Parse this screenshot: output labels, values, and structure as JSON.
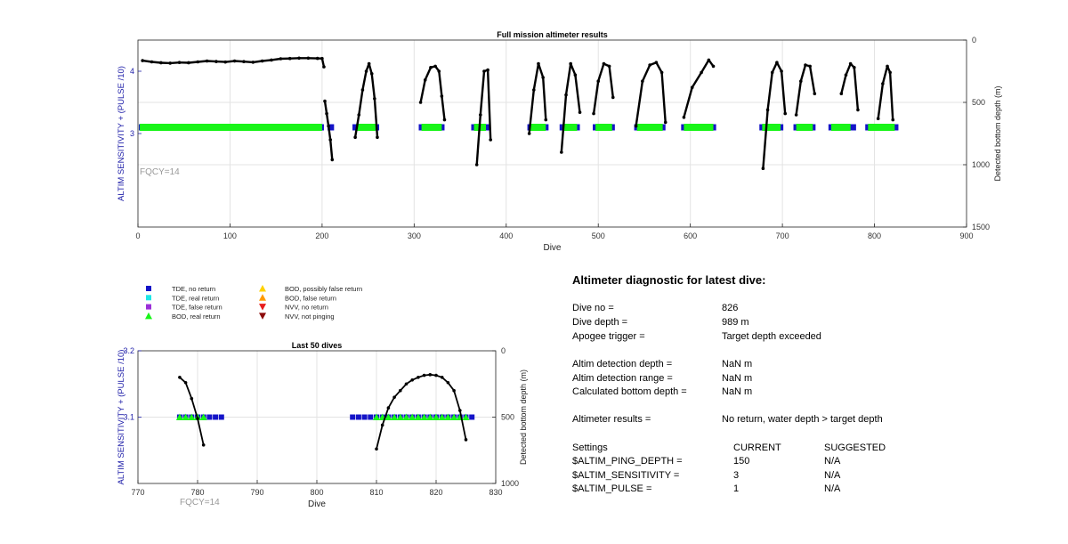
{
  "colors": {
    "tde_no": "#1414c8",
    "tde_real": "#1ee6e6",
    "tde_false": "#9b2fd8",
    "bod_real": "#19f519",
    "bod_possibly_false": "#ffd200",
    "bod_false": "#ff9a00",
    "nvv_no": "#e81c1c",
    "nvv_not": "#8c0a0a",
    "left_axis": "#2222aa",
    "fqcy": "#999999",
    "grid": "#e3e3e3"
  },
  "legend": {
    "items": [
      {
        "label": "TDE, no return",
        "marker": "square",
        "color": "#1414c8"
      },
      {
        "label": "TDE, real return",
        "marker": "square",
        "color": "#1ee6e6"
      },
      {
        "label": "TDE, false return",
        "marker": "square",
        "color": "#9b2fd8"
      },
      {
        "label": "BOD, real return",
        "marker": "triangle-up",
        "color": "#19f519"
      },
      {
        "label": "BOD, possibly false return",
        "marker": "triangle-up",
        "color": "#ffd200"
      },
      {
        "label": "BOD, false return",
        "marker": "triangle-up",
        "color": "#ff9a00"
      },
      {
        "label": "NVV, no return",
        "marker": "triangle-down",
        "color": "#e81c1c"
      },
      {
        "label": "NVV, not pinging",
        "marker": "triangle-down",
        "color": "#8c0a0a"
      }
    ]
  },
  "chart_data": [
    {
      "type": "scatter",
      "title": "Full mission altimeter results",
      "xlabel": "Dive",
      "ylabel_left": "ALTIM SENSITIVITY + (PULSE /10)",
      "ylabel_right": "Detected bottom depth (m)",
      "xlim": [
        0,
        900
      ],
      "xticks": [
        "0",
        "100",
        "200",
        "300",
        "400",
        "500",
        "600",
        "700",
        "800",
        "900"
      ],
      "ylim_left": [
        1.5,
        4.5
      ],
      "yticks_left": [
        "3",
        "4"
      ],
      "ylim_right": [
        1500,
        0
      ],
      "yticks_right": [
        "0",
        "500",
        "1000",
        "1500"
      ],
      "grid": true,
      "annotation": "FQCY=14",
      "sensitivity_level": 3.1,
      "tde_no_return_dive_ranges": [
        [
          1,
          202
        ],
        [
          206,
          213
        ],
        [
          233,
          262
        ],
        [
          305,
          333
        ],
        [
          362,
          382
        ],
        [
          423,
          446
        ],
        [
          458,
          480
        ],
        [
          494,
          518
        ],
        [
          539,
          573
        ],
        [
          590,
          628
        ],
        [
          675,
          701
        ],
        [
          712,
          736
        ],
        [
          750,
          780
        ],
        [
          790,
          826
        ]
      ],
      "bod_real_return_dive_ranges": [
        [
          2,
          200
        ],
        [
          237,
          258
        ],
        [
          308,
          330
        ],
        [
          365,
          378
        ],
        [
          426,
          443
        ],
        [
          461,
          477
        ],
        [
          497,
          515
        ],
        [
          542,
          570
        ],
        [
          593,
          625
        ],
        [
          678,
          698
        ],
        [
          715,
          733
        ],
        [
          753,
          774
        ],
        [
          793,
          822
        ]
      ],
      "bottom_depth_segments": [
        {
          "x": [
            5,
            15,
            25,
            35,
            45,
            55,
            65,
            75,
            85,
            95,
            105,
            115,
            125,
            135,
            145,
            155,
            165,
            175,
            185,
            195,
            200,
            202
          ],
          "y": [
            165,
            175,
            182,
            185,
            180,
            182,
            175,
            168,
            172,
            176,
            168,
            173,
            178,
            168,
            160,
            150,
            148,
            145,
            145,
            147,
            148,
            215
          ]
        },
        {
          "x": [
            203,
            205,
            207,
            209,
            211
          ],
          "y": [
            490,
            590,
            690,
            800,
            960
          ]
        },
        {
          "x": [
            236,
            240,
            244,
            248,
            251,
            254,
            257,
            260
          ],
          "y": [
            780,
            600,
            400,
            250,
            190,
            270,
            470,
            780
          ]
        },
        {
          "x": [
            307,
            312,
            318,
            323,
            327,
            330,
            333
          ],
          "y": [
            500,
            320,
            220,
            210,
            250,
            450,
            640
          ]
        },
        {
          "x": [
            368,
            372,
            376,
            380,
            383
          ],
          "y": [
            1000,
            600,
            250,
            240,
            800
          ]
        },
        {
          "x": [
            425,
            430,
            435,
            440,
            443
          ],
          "y": [
            750,
            400,
            190,
            300,
            640
          ]
        },
        {
          "x": [
            460,
            465,
            470,
            475,
            480
          ],
          "y": [
            900,
            440,
            190,
            280,
            580
          ]
        },
        {
          "x": [
            495,
            500,
            506,
            512,
            516
          ],
          "y": [
            590,
            330,
            190,
            210,
            460
          ]
        },
        {
          "x": [
            541,
            548,
            556,
            563,
            569,
            573
          ],
          "y": [
            690,
            330,
            200,
            180,
            260,
            660
          ]
        },
        {
          "x": [
            593,
            602,
            612,
            620,
            625
          ],
          "y": [
            620,
            380,
            260,
            160,
            210
          ]
        },
        {
          "x": [
            679,
            684,
            689,
            694,
            699,
            703
          ],
          "y": [
            1030,
            560,
            260,
            180,
            250,
            590
          ]
        },
        {
          "x": [
            715,
            720,
            725,
            730,
            735
          ],
          "y": [
            600,
            330,
            200,
            210,
            430
          ]
        },
        {
          "x": [
            764,
            769,
            774,
            778,
            782
          ],
          "y": [
            430,
            280,
            190,
            220,
            560
          ]
        },
        {
          "x": [
            804,
            809,
            814,
            817,
            820
          ],
          "y": [
            630,
            350,
            210,
            260,
            640
          ]
        }
      ]
    },
    {
      "type": "scatter",
      "title": "Last 50 dives",
      "xlabel": "Dive",
      "ylabel_left": "ALTIM SENSITIVITY + (PULSE /10)",
      "ylabel_right": "Detected bottom depth (m)",
      "xlim": [
        770,
        830
      ],
      "xticks": [
        "770",
        "780",
        "790",
        "800",
        "810",
        "820",
        "830"
      ],
      "ylim_left": [
        3.0,
        3.2
      ],
      "yticks_left": [
        "3.1",
        "3.2"
      ],
      "ylim_right": [
        1000,
        0
      ],
      "yticks_right": [
        "0",
        "500",
        "1000"
      ],
      "grid": true,
      "annotation": "FQCY=14",
      "tde_no_return_dives": [
        777,
        778,
        779,
        780,
        781,
        782,
        783,
        784,
        806,
        807,
        808,
        809,
        810,
        811,
        812,
        813,
        814,
        815,
        816,
        817,
        818,
        819,
        820,
        821,
        822,
        823,
        824,
        825,
        826
      ],
      "tde_no_return_level": 3.1,
      "bod_real_return_dives": [
        777,
        778,
        779,
        780,
        781,
        810,
        811,
        812,
        813,
        814,
        815,
        816,
        817,
        818,
        819,
        820,
        821,
        822,
        823,
        824,
        825
      ],
      "bod_real_return_level": 3.1,
      "bottom_depth_segments": [
        {
          "x": [
            777,
            778,
            779,
            780,
            781
          ],
          "y": [
            200,
            240,
            360,
            510,
            710
          ]
        },
        {
          "x": [
            810,
            811,
            812,
            813,
            814,
            815,
            816,
            817,
            818,
            819,
            820,
            821,
            822,
            823,
            824,
            825
          ],
          "y": [
            740,
            560,
            430,
            350,
            300,
            250,
            220,
            200,
            185,
            180,
            185,
            200,
            240,
            300,
            450,
            670
          ]
        }
      ]
    }
  ],
  "diagnostic": {
    "title": "Altimeter diagnostic for latest dive:",
    "rows": [
      {
        "label": "Dive no =",
        "value": "826"
      },
      {
        "label": "Dive depth =",
        "value": "989 m"
      },
      {
        "label": "Apogee trigger =",
        "value": "Target depth exceeded"
      },
      {
        "label": "Altim detection depth =",
        "value": "NaN m"
      },
      {
        "label": "Altim detection range =",
        "value": "NaN m"
      },
      {
        "label": "Calculated bottom depth =",
        "value": "NaN m"
      },
      {
        "label": "Altimeter results =",
        "value": "No return, water depth > target depth"
      }
    ],
    "settings_header": {
      "label": "Settings",
      "current": "CURRENT",
      "suggested": "SUGGESTED"
    },
    "settings": [
      {
        "name": "$ALTIM_PING_DEPTH =",
        "current": "150",
        "suggested": "N/A"
      },
      {
        "name": "$ALTIM_SENSITIVITY =",
        "current": "3",
        "suggested": "N/A"
      },
      {
        "name": "$ALTIM_PULSE =",
        "current": "1",
        "suggested": "N/A"
      }
    ]
  }
}
